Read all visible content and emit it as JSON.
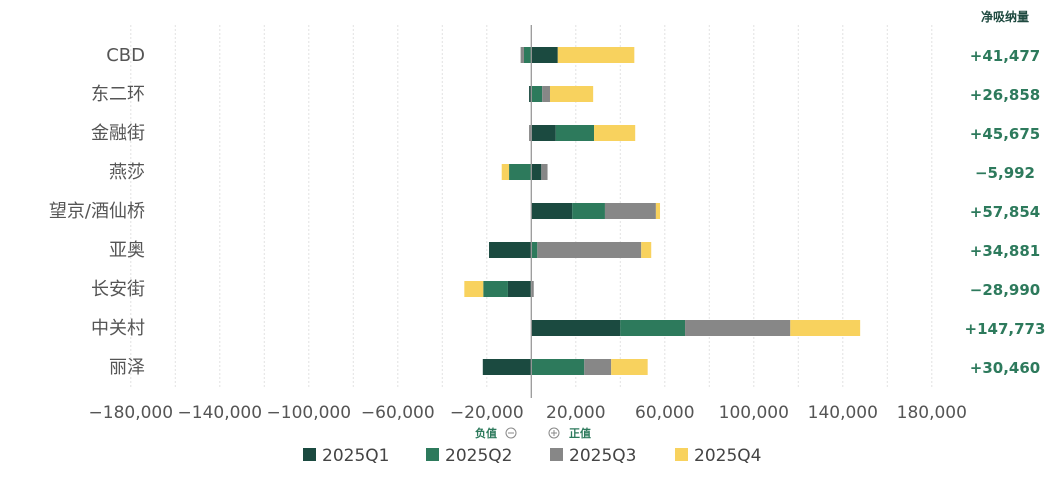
{
  "chart_data": {
    "type": "bar",
    "orientation": "horizontal",
    "stacked": true,
    "categories": [
      "CBD",
      "东二环",
      "金融街",
      "燕莎",
      "望京/酒仙桥",
      "亚奥",
      "长安街",
      "中关村",
      "丽泽"
    ],
    "series": [
      {
        "name": "2025Q1",
        "color": "#1b4a40",
        "values": [
          11900,
          -1000,
          11000,
          4500,
          18400,
          -19000,
          -10500,
          40000,
          -21800
        ]
      },
      {
        "name": "2025Q2",
        "color": "#2d7a5c",
        "values": [
          -3300,
          4900,
          17200,
          -10000,
          14700,
          2700,
          -11100,
          29100,
          23800
        ]
      },
      {
        "name": "2025Q3",
        "color": "#878787",
        "values": [
          -1500,
          3500,
          -1000,
          2800,
          22900,
          46700,
          1100,
          47300,
          12100
        ]
      },
      {
        "name": "2025Q4",
        "color": "#f8d25e",
        "values": [
          34400,
          19400,
          18500,
          -3300,
          1850,
          4500,
          -8500,
          31400,
          16400
        ]
      }
    ],
    "net_header": "净吸纳量",
    "net_labels": [
      "+41,477",
      "+26,858",
      "+45,675",
      "−5,992",
      "+57,854",
      "+34,881",
      "−28,990",
      "+147,773",
      "+30,460"
    ],
    "xlim": [
      -180000,
      180000
    ],
    "xticks": [
      -180000,
      -140000,
      -100000,
      -60000,
      -20000,
      20000,
      60000,
      100000,
      140000,
      180000
    ],
    "xtick_labels": [
      "−180,000",
      "−140,000",
      "−100,000",
      "−60,000",
      "−20,000",
      "20,000",
      "60,000",
      "100,000",
      "140,000",
      "180,000"
    ],
    "negative_hint": "负值",
    "positive_hint": "正值",
    "grid": true,
    "legend_position": "bottom"
  }
}
